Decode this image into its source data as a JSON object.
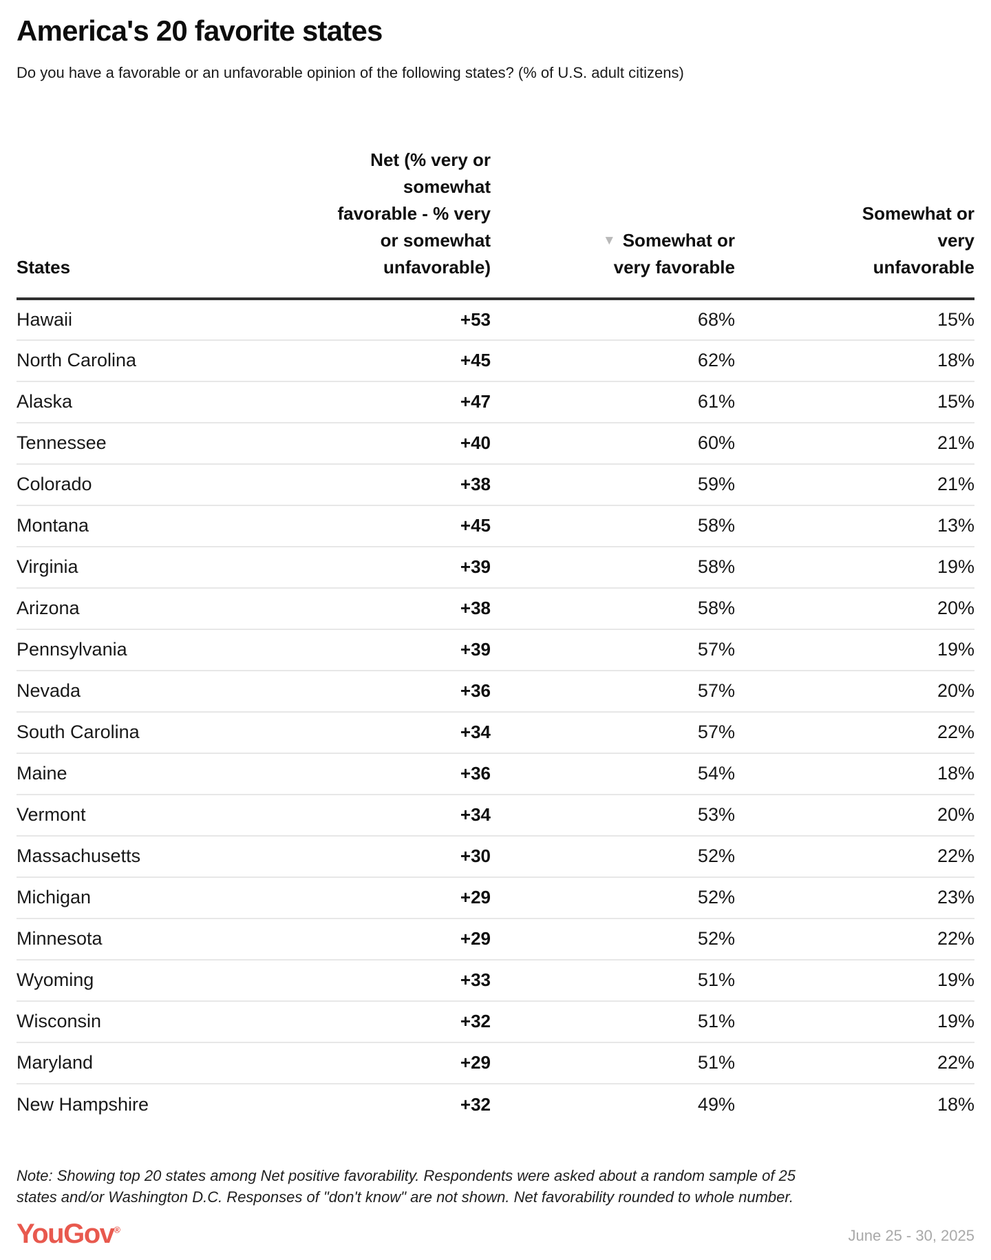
{
  "header": {
    "title": "America's 20 favorite states",
    "subtitle": "Do you have a favorable or an unfavorable opinion of the following states? (% of U.S. adult citizens)"
  },
  "table": {
    "columns": {
      "states": "States",
      "net": "Net (% very or\nsomewhat\nfavorable - % very\nor somewhat\nunfavorable)",
      "favorable": "Somewhat or\nvery favorable",
      "unfavorable": "Somewhat or\nvery\nunfavorable"
    },
    "sort_icon": "▼",
    "sorted_by": "Somewhat or very favorable",
    "sort_direction": "descending"
  },
  "chart_data": {
    "type": "table",
    "title": "America's 20 favorite states",
    "subtitle": "Do you have a favorable or an unfavorable opinion of the following states? (% of U.S. adult citizens)",
    "units": "% of U.S. adult citizens",
    "columns": [
      "States",
      "Net (% very or somewhat favorable - % very or somewhat unfavorable)",
      "Somewhat or very favorable",
      "Somewhat or very unfavorable"
    ],
    "rows": [
      [
        "Hawaii",
        53,
        68,
        15
      ],
      [
        "North Carolina",
        45,
        62,
        18
      ],
      [
        "Alaska",
        47,
        61,
        15
      ],
      [
        "Tennessee",
        40,
        60,
        21
      ],
      [
        "Colorado",
        38,
        59,
        21
      ],
      [
        "Montana",
        45,
        58,
        13
      ],
      [
        "Virginia",
        39,
        58,
        19
      ],
      [
        "Arizona",
        38,
        58,
        20
      ],
      [
        "Pennsylvania",
        39,
        57,
        19
      ],
      [
        "Nevada",
        36,
        57,
        20
      ],
      [
        "South Carolina",
        34,
        57,
        22
      ],
      [
        "Maine",
        36,
        54,
        18
      ],
      [
        "Vermont",
        34,
        53,
        20
      ],
      [
        "Massachusetts",
        30,
        52,
        22
      ],
      [
        "Michigan",
        29,
        52,
        23
      ],
      [
        "Minnesota",
        29,
        52,
        22
      ],
      [
        "Wyoming",
        33,
        51,
        19
      ],
      [
        "Wisconsin",
        32,
        51,
        19
      ],
      [
        "Maryland",
        29,
        51,
        22
      ],
      [
        "New Hampshire",
        32,
        49,
        18
      ]
    ]
  },
  "note": "Note: Showing top 20 states among Net positive favorability. Respondents were asked about a random sample of 25\nstates and/or Washington D.C. Responses of \"don't know\" are not shown. Net favorability rounded to whole number.",
  "footer": {
    "logo_text": "YouGov",
    "registered_mark": "®",
    "date_range": "June 25 - 30, 2025"
  },
  "colors": {
    "brand": "#E8594E",
    "sort_icon": "#B9B9B9",
    "header_rule": "#303030",
    "row_divider": "#E7E7E7",
    "date_text": "#A9A9A9"
  }
}
